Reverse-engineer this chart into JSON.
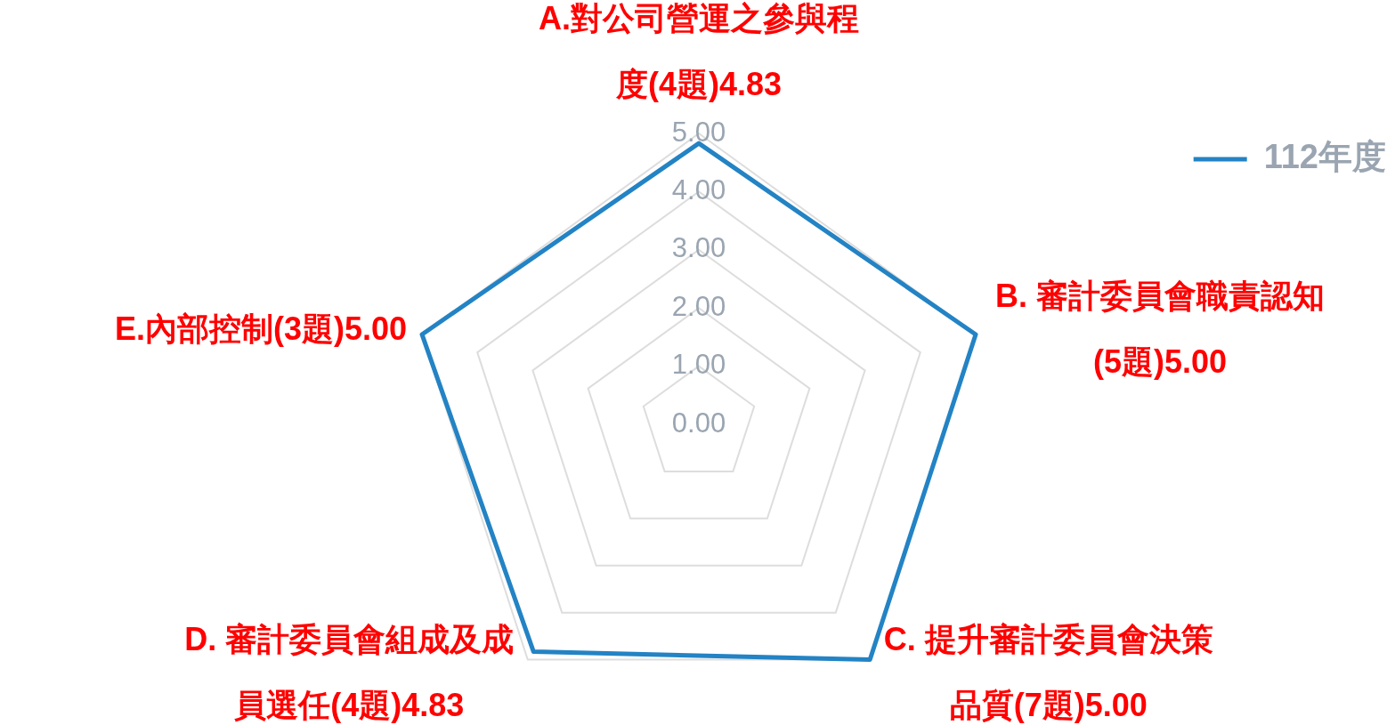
{
  "chart_data": {
    "type": "radar",
    "categories": [
      "A.對公司營運之參與程度(4題)4.83",
      "B. 審計委員會職責認知(5題)5.00",
      "C. 提升審計委員會決策品質(7題)5.00",
      "D.  審計委員會組成及成員選任(4題)4.83",
      "E.內部控制(3題)5.00"
    ],
    "series": [
      {
        "name": "112年度",
        "color": "#2383c4",
        "values": [
          4.83,
          5.0,
          5.0,
          4.83,
          5.0
        ]
      }
    ],
    "ylim": [
      0,
      5
    ],
    "yticks": [
      {
        "value": 0,
        "label": "0.00"
      },
      {
        "value": 1,
        "label": "1.00"
      },
      {
        "value": 2,
        "label": "2.00"
      },
      {
        "value": 3,
        "label": "3.00"
      },
      {
        "value": 4,
        "label": "4.00"
      },
      {
        "value": 5,
        "label": "5.00"
      }
    ],
    "grid": true,
    "legend": "top right",
    "marker": "none",
    "line_style": "solid"
  }
}
